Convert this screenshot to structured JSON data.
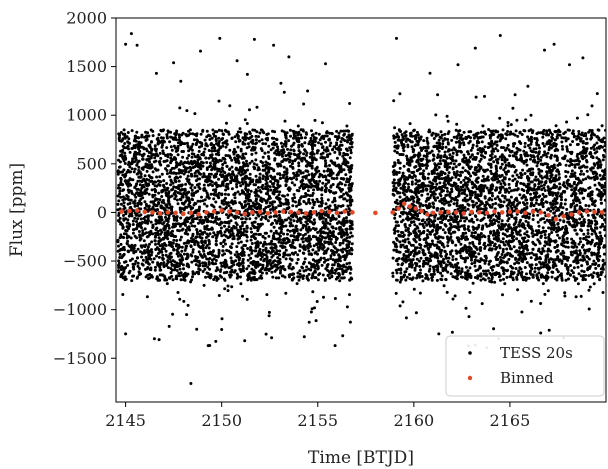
{
  "chart_data": {
    "type": "scatter",
    "xlabel": "Time [BTJD]",
    "ylabel": "Flux [ppm]",
    "xlim": [
      2144.5,
      2170.0
    ],
    "ylim": [
      -1950,
      2000
    ],
    "xticks": [
      2145,
      2150,
      2155,
      2160,
      2165
    ],
    "yticks": [
      -1500,
      -1000,
      -500,
      0,
      500,
      1000,
      1500,
      2000
    ],
    "grid": false,
    "legend_position": "bottom-right",
    "series": [
      {
        "name": "TESS 20s",
        "color": "#000000",
        "marker": "dot",
        "segments": [
          [
            2144.6,
            2156.8
          ],
          [
            2158.9,
            2170.0
          ]
        ],
        "core_range": [
          -700,
          850
        ],
        "scatter_range": [
          -1400,
          1850
        ],
        "outliers": [
          {
            "x": 2145.0,
            "y": 1730
          },
          {
            "x": 2145.3,
            "y": 1840
          },
          {
            "x": 2145.6,
            "y": 1720
          },
          {
            "x": 2146.6,
            "y": 1430
          },
          {
            "x": 2147.5,
            "y": 1540
          },
          {
            "x": 2148.9,
            "y": 1660
          },
          {
            "x": 2149.9,
            "y": 1790
          },
          {
            "x": 2150.8,
            "y": 1560
          },
          {
            "x": 2151.7,
            "y": 1780
          },
          {
            "x": 2152.7,
            "y": 1720
          },
          {
            "x": 2153.5,
            "y": 1600
          },
          {
            "x": 2155.4,
            "y": 1530
          },
          {
            "x": 2159.1,
            "y": 1790
          },
          {
            "x": 2162.3,
            "y": 1520
          },
          {
            "x": 2163.2,
            "y": 1690
          },
          {
            "x": 2164.5,
            "y": 1820
          },
          {
            "x": 2166.8,
            "y": 1670
          },
          {
            "x": 2167.3,
            "y": 1730
          },
          {
            "x": 2168.1,
            "y": 1520
          },
          {
            "x": 2168.8,
            "y": 1590
          },
          {
            "x": 2145.0,
            "y": -1250
          },
          {
            "x": 2146.5,
            "y": -1300
          },
          {
            "x": 2148.4,
            "y": -1760
          },
          {
            "x": 2149.3,
            "y": -1370
          },
          {
            "x": 2151.2,
            "y": -1320
          },
          {
            "x": 2152.6,
            "y": -1290
          },
          {
            "x": 2155.9,
            "y": -1370
          },
          {
            "x": 2161.3,
            "y": -1250
          },
          {
            "x": 2164.4,
            "y": -1300
          },
          {
            "x": 2166.6,
            "y": -1240
          },
          {
            "x": 2167.8,
            "y": -1290
          }
        ]
      },
      {
        "name": "Binned",
        "color": "#e24a2b",
        "marker": "dot",
        "points": [
          {
            "x": 2144.8,
            "y": 10
          },
          {
            "x": 2145.2,
            "y": 15
          },
          {
            "x": 2145.6,
            "y": 20
          },
          {
            "x": 2146.0,
            "y": 5
          },
          {
            "x": 2146.4,
            "y": 0
          },
          {
            "x": 2146.8,
            "y": -10
          },
          {
            "x": 2147.2,
            "y": 0
          },
          {
            "x": 2147.6,
            "y": -5
          },
          {
            "x": 2148.0,
            "y": -15
          },
          {
            "x": 2148.4,
            "y": -5
          },
          {
            "x": 2148.8,
            "y": -20
          },
          {
            "x": 2149.2,
            "y": 0
          },
          {
            "x": 2149.6,
            "y": 10
          },
          {
            "x": 2150.0,
            "y": 20
          },
          {
            "x": 2150.4,
            "y": 10
          },
          {
            "x": 2150.8,
            "y": 0
          },
          {
            "x": 2151.2,
            "y": -15
          },
          {
            "x": 2151.6,
            "y": 0
          },
          {
            "x": 2152.0,
            "y": 5
          },
          {
            "x": 2152.4,
            "y": -10
          },
          {
            "x": 2152.8,
            "y": 0
          },
          {
            "x": 2153.2,
            "y": 10
          },
          {
            "x": 2153.6,
            "y": 5
          },
          {
            "x": 2154.0,
            "y": 0
          },
          {
            "x": 2154.4,
            "y": -10
          },
          {
            "x": 2154.8,
            "y": 0
          },
          {
            "x": 2155.2,
            "y": 15
          },
          {
            "x": 2155.6,
            "y": 5
          },
          {
            "x": 2156.0,
            "y": -5
          },
          {
            "x": 2156.4,
            "y": 10
          },
          {
            "x": 2156.8,
            "y": 0
          },
          {
            "x": 2158.0,
            "y": -5
          },
          {
            "x": 2158.9,
            "y": 0
          },
          {
            "x": 2159.2,
            "y": 40
          },
          {
            "x": 2159.5,
            "y": 90
          },
          {
            "x": 2159.8,
            "y": 60
          },
          {
            "x": 2160.1,
            "y": 40
          },
          {
            "x": 2160.4,
            "y": 15
          },
          {
            "x": 2160.7,
            "y": -20
          },
          {
            "x": 2161.0,
            "y": -5
          },
          {
            "x": 2161.4,
            "y": 0
          },
          {
            "x": 2161.8,
            "y": 5
          },
          {
            "x": 2162.2,
            "y": 0
          },
          {
            "x": 2162.6,
            "y": -10
          },
          {
            "x": 2163.0,
            "y": 5
          },
          {
            "x": 2163.4,
            "y": 0
          },
          {
            "x": 2163.8,
            "y": -5
          },
          {
            "x": 2164.2,
            "y": 10
          },
          {
            "x": 2164.6,
            "y": 0
          },
          {
            "x": 2165.0,
            "y": 5
          },
          {
            "x": 2165.4,
            "y": 10
          },
          {
            "x": 2165.8,
            "y": -5
          },
          {
            "x": 2166.2,
            "y": 10
          },
          {
            "x": 2166.6,
            "y": 0
          },
          {
            "x": 2167.0,
            "y": -30
          },
          {
            "x": 2167.4,
            "y": -70
          },
          {
            "x": 2167.8,
            "y": -40
          },
          {
            "x": 2168.2,
            "y": -20
          },
          {
            "x": 2168.6,
            "y": 0
          },
          {
            "x": 2169.0,
            "y": 10
          },
          {
            "x": 2169.4,
            "y": 5
          },
          {
            "x": 2169.8,
            "y": 0
          }
        ]
      }
    ]
  }
}
